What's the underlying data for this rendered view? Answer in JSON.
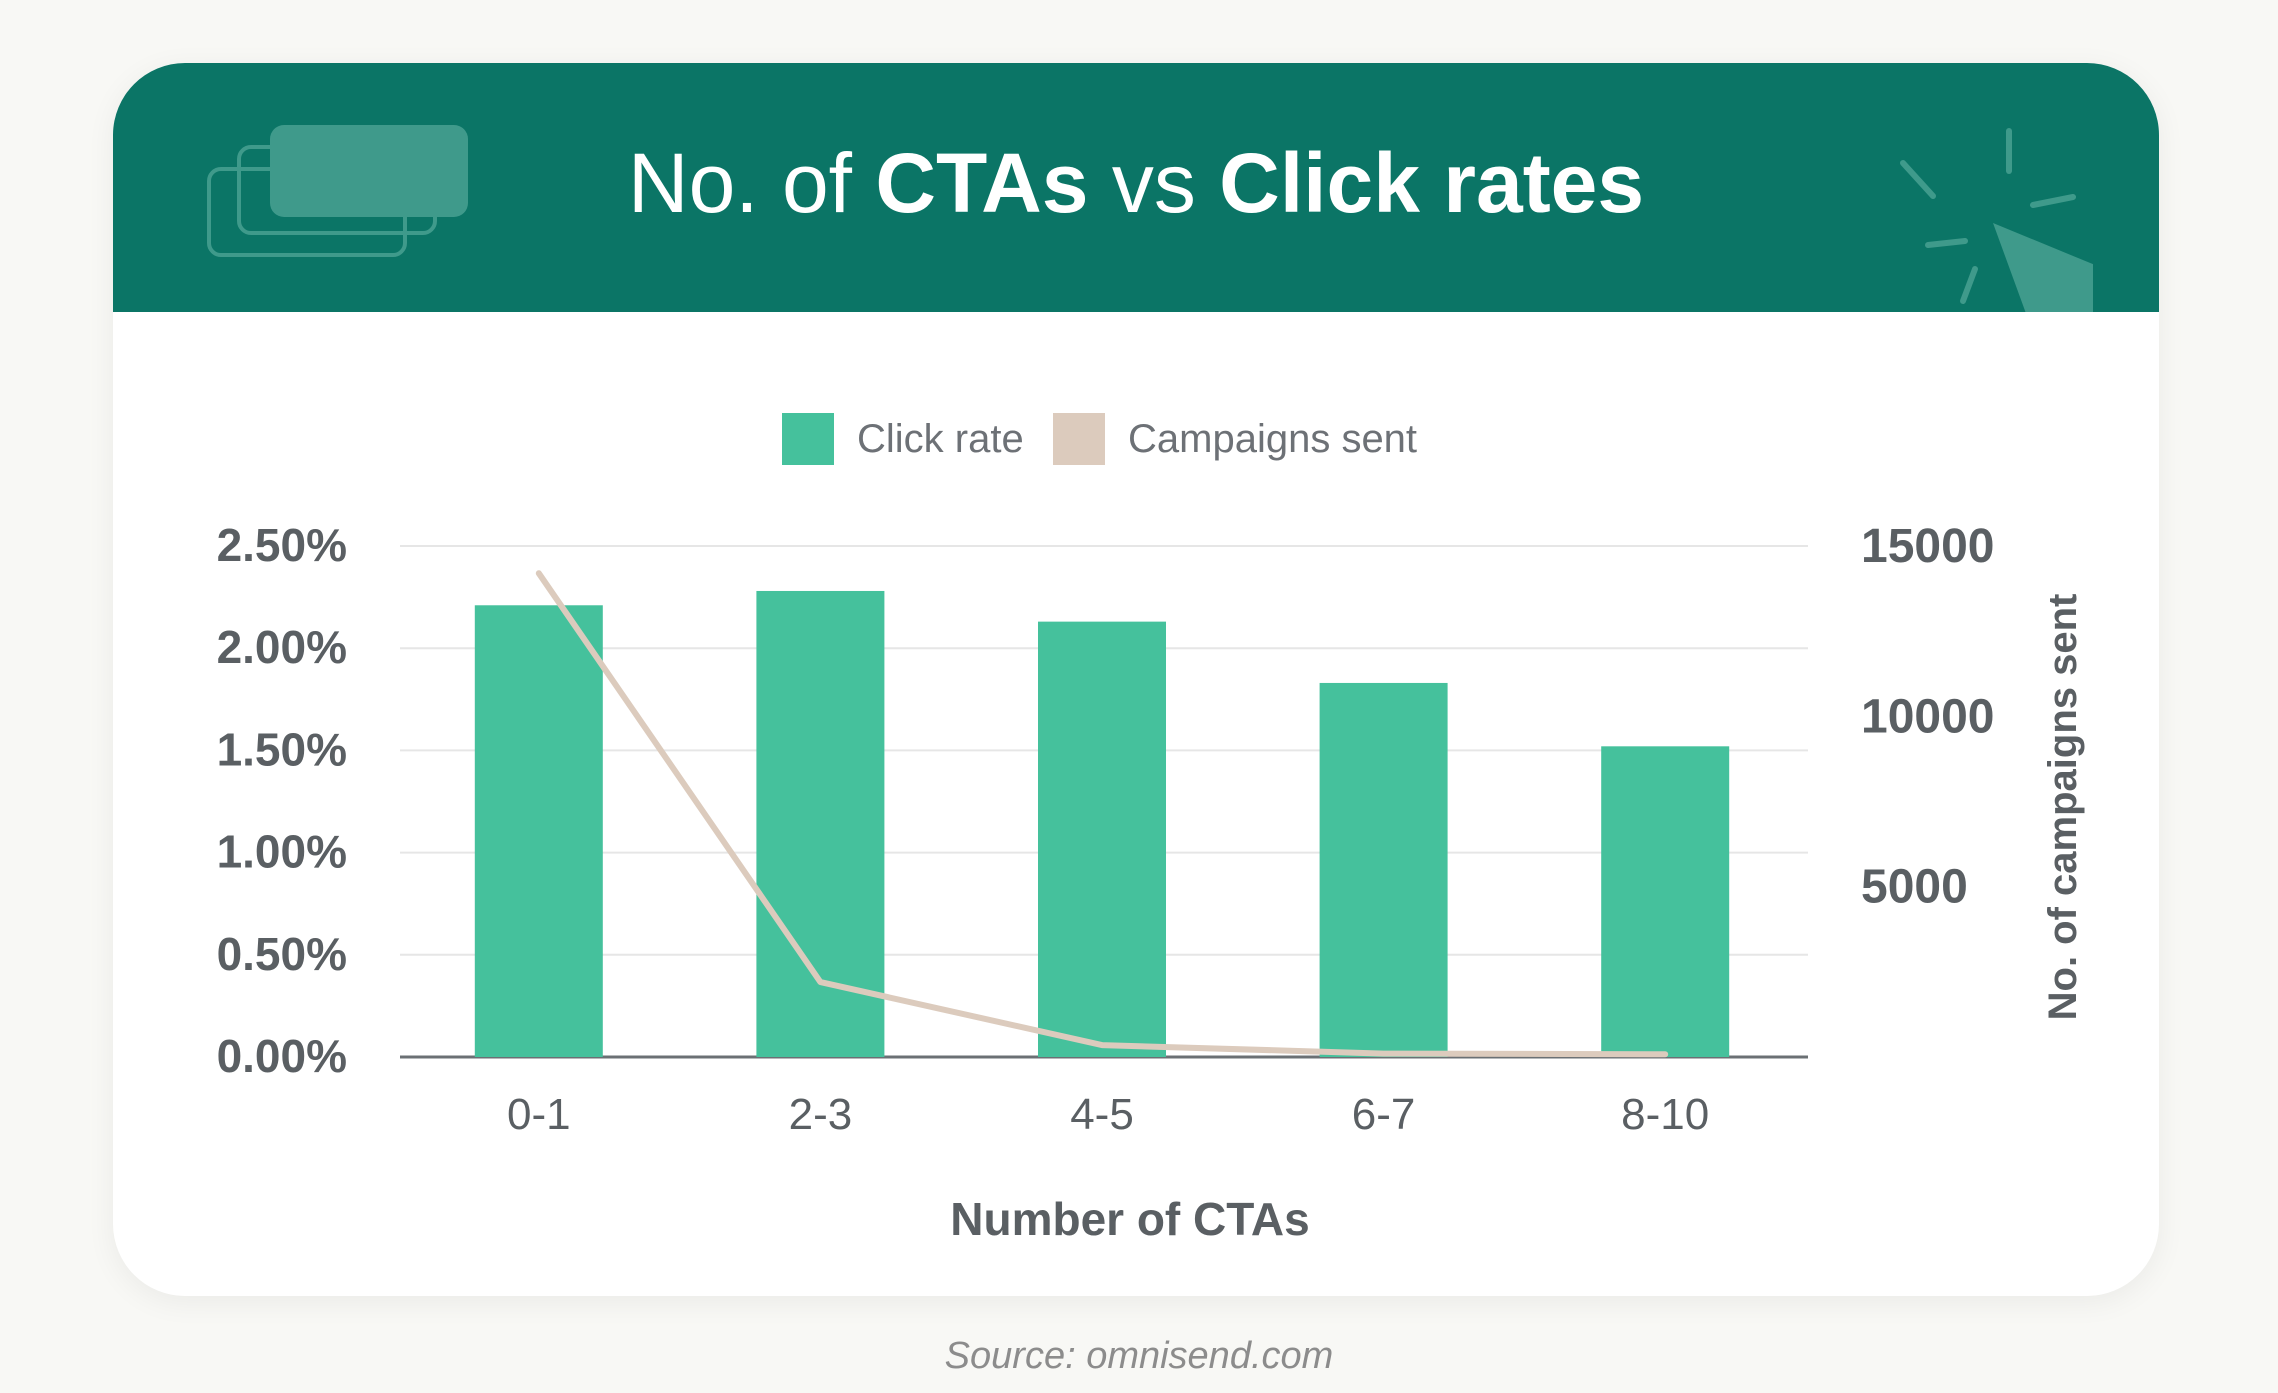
{
  "header": {
    "title_part1": "No. of ",
    "title_part2": "CTAs",
    "title_part3": " vs ",
    "title_part4": "Click rates"
  },
  "colors": {
    "header_bg": "#0b7566",
    "bar": "#45c19c",
    "line": "#dccbbd",
    "axis_text": "#5a5f63",
    "grid": "#e6e6e6"
  },
  "chart_data": {
    "type": "bar",
    "title": "No. of CTAs vs Click rates",
    "xlabel": "Number of CTAs",
    "ylabel": "",
    "y2label": "No. of campaigns sent",
    "categories": [
      "0-1",
      "2-3",
      "4-5",
      "6-7",
      "8-10"
    ],
    "series": [
      {
        "name": "Click rate",
        "type": "bar",
        "axis": "left",
        "values": [
          2.21,
          2.28,
          2.13,
          1.83,
          1.52
        ]
      },
      {
        "name": "Campaigns sent",
        "type": "line",
        "axis": "right",
        "values": [
          14200,
          2200,
          350,
          100,
          80
        ]
      }
    ],
    "ylim": [
      0,
      2.5
    ],
    "y_ticks": [
      "0.00%",
      "0.50%",
      "1.00%",
      "1.50%",
      "2.00%",
      "2.50%"
    ],
    "y2lim": [
      0,
      15000
    ],
    "y2_ticks": [
      "5000",
      "10000",
      "15000"
    ],
    "grid": true,
    "legend_position": "top-center"
  },
  "source": "Source: omnisend.com"
}
